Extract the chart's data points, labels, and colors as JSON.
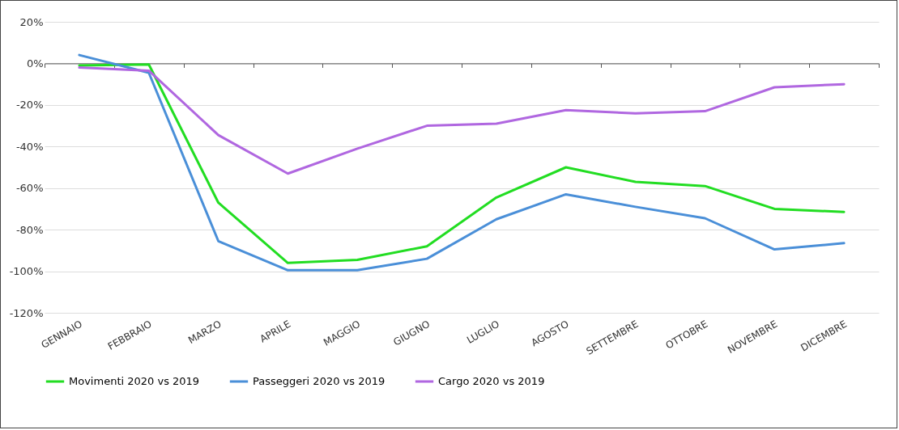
{
  "chart_data": {
    "type": "line",
    "categories": [
      "GENNAIO",
      "FEBBRAIO",
      "MARZO",
      "APRILE",
      "MAGGIO",
      "GIUGNO",
      "LUGLIO",
      "AGOSTO",
      "SETTEMBRE",
      "OTTOBRE",
      "NOVEMBRE",
      "DICEMBRE"
    ],
    "series": [
      {
        "name": "Movimenti 2020 vs 2019",
        "color": "#22dd22",
        "values": [
          -1,
          -0.5,
          -67,
          -96,
          -94.5,
          -88,
          -64.5,
          -50,
          -57,
          -59,
          -70,
          -71.5
        ]
      },
      {
        "name": "Passeggeri 2020 vs 2019",
        "color": "#4a8fd8",
        "values": [
          4,
          -4.5,
          -85.5,
          -99.5,
          -99.5,
          -94,
          -75,
          -63,
          -69,
          -74.5,
          -89.5,
          -86.5
        ]
      },
      {
        "name": "Cargo 2020 vs 2019",
        "color": "#b067e0",
        "values": [
          -2,
          -3.5,
          -34.5,
          -53,
          -41,
          -30,
          -29,
          -22.5,
          -24,
          -23,
          -11.5,
          -10
        ]
      }
    ],
    "ylim": [
      -120,
      20
    ],
    "yticks": [
      {
        "value": -120,
        "label": "-120%"
      },
      {
        "value": -100,
        "label": "-100%"
      },
      {
        "value": -80,
        "label": "-80%"
      },
      {
        "value": -60,
        "label": "-60%"
      },
      {
        "value": -40,
        "label": "-40%"
      },
      {
        "value": -20,
        "label": "-20%"
      },
      {
        "value": 0,
        "label": "0%"
      },
      {
        "value": 20,
        "label": "20%"
      }
    ],
    "grid": "y",
    "legend": "bottom"
  }
}
